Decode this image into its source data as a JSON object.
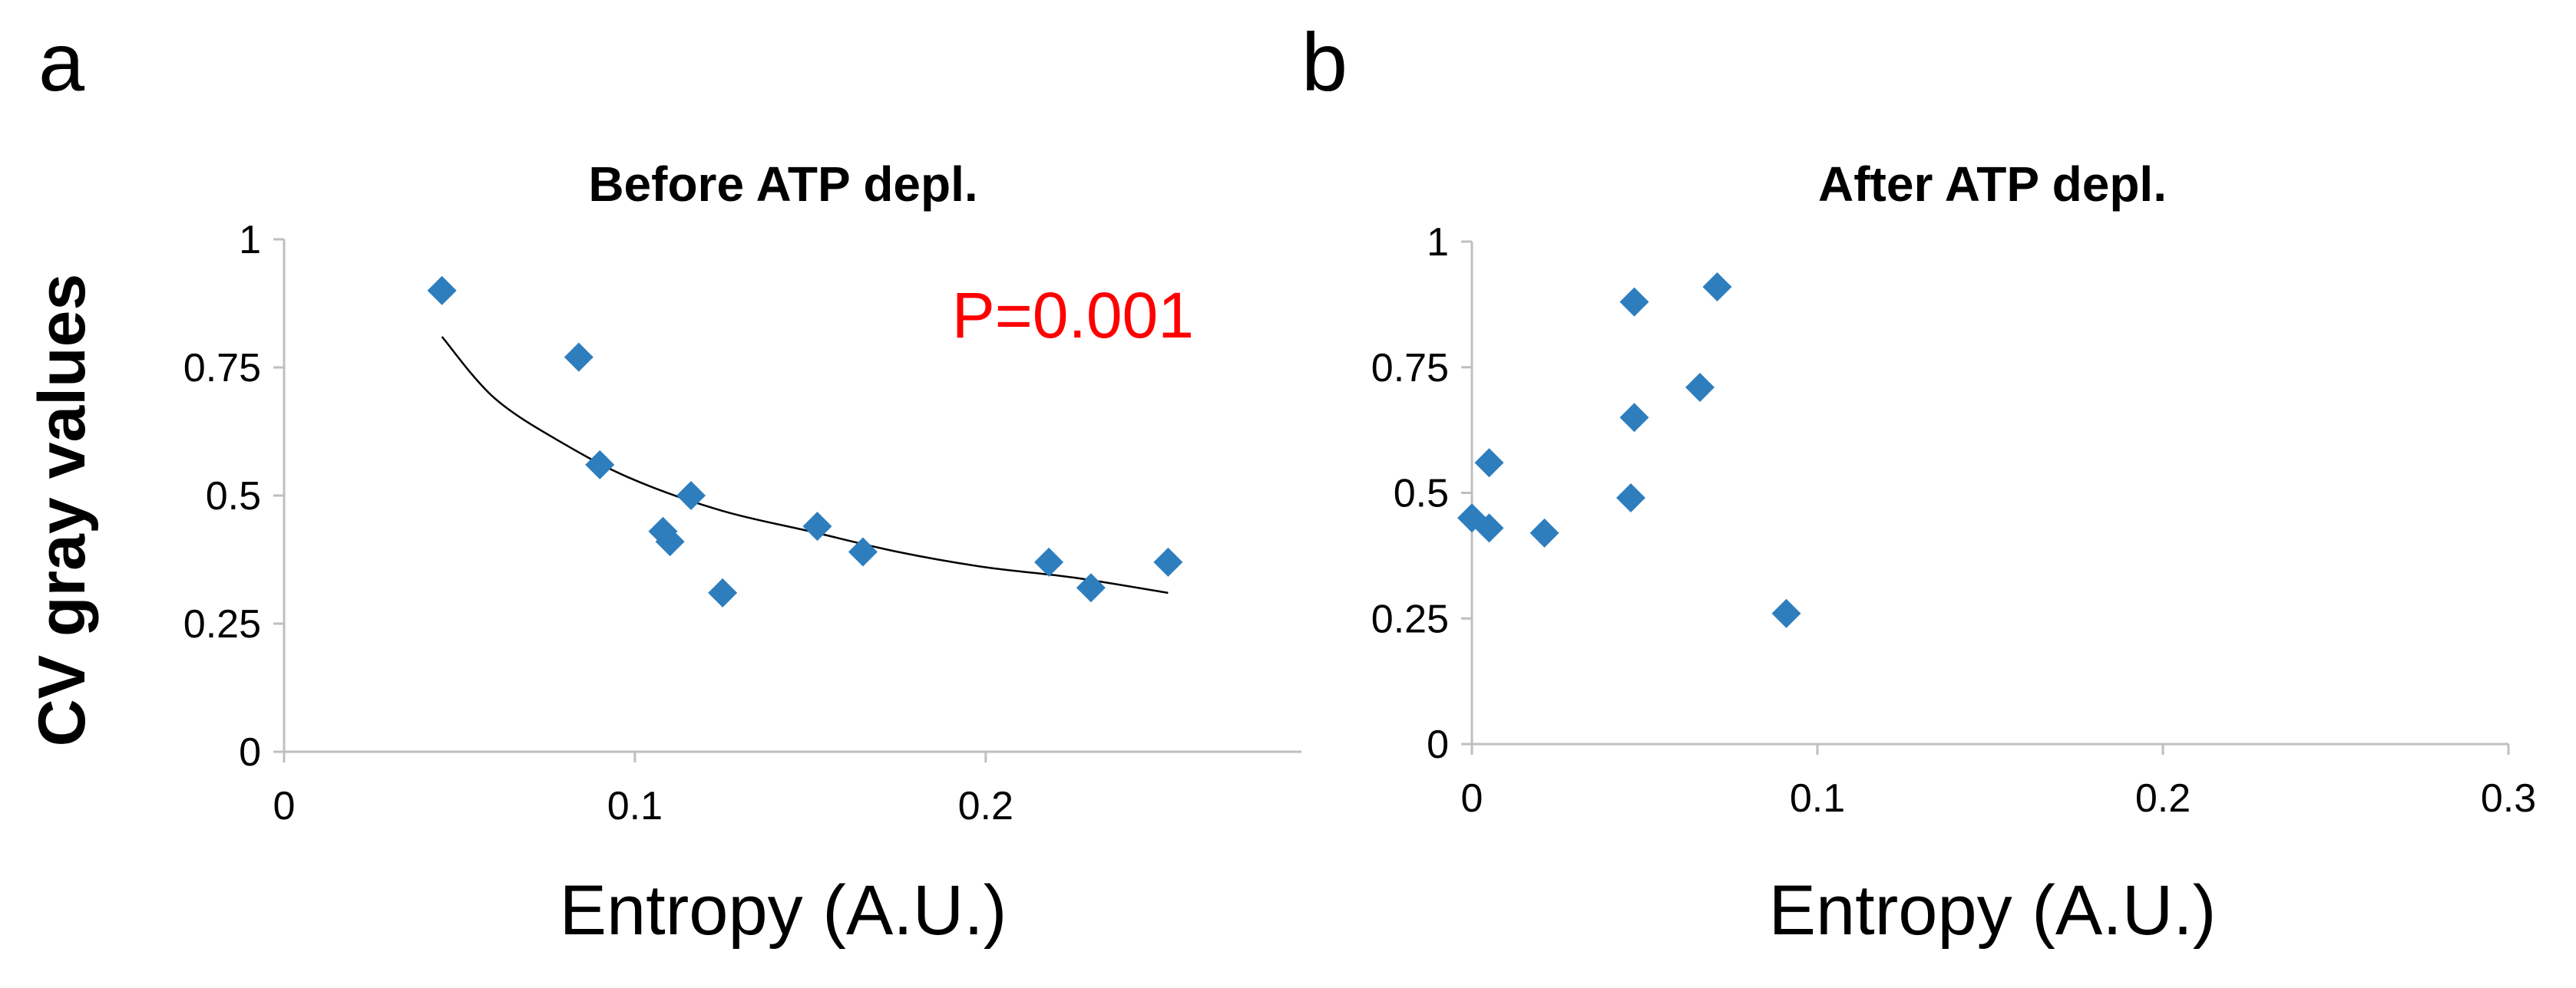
{
  "figure": {
    "y_label": "CV gray values"
  },
  "chart_data": [
    {
      "panel": "a",
      "type": "scatter",
      "title": "Before ATP depl.",
      "xlabel": "Entropy (A.U.)",
      "ylabel": "CV gray values",
      "xlim": [
        0,
        0.29
      ],
      "ylim": [
        0,
        1
      ],
      "xticks": [
        0,
        0.1,
        0.2
      ],
      "xtick_labels": [
        "0",
        "0.1",
        "0.2"
      ],
      "yticks": [
        0,
        0.25,
        0.5,
        0.75,
        1
      ],
      "ytick_labels": [
        "0",
        "0.25",
        "0.5",
        "0.75",
        "1"
      ],
      "marker": "diamond",
      "marker_color": "#2e7ebe",
      "points": [
        {
          "x": 0.045,
          "y": 0.9
        },
        {
          "x": 0.084,
          "y": 0.77
        },
        {
          "x": 0.09,
          "y": 0.56
        },
        {
          "x": 0.108,
          "y": 0.43
        },
        {
          "x": 0.11,
          "y": 0.41
        },
        {
          "x": 0.116,
          "y": 0.5
        },
        {
          "x": 0.125,
          "y": 0.31
        },
        {
          "x": 0.152,
          "y": 0.44
        },
        {
          "x": 0.165,
          "y": 0.39
        },
        {
          "x": 0.218,
          "y": 0.37
        },
        {
          "x": 0.23,
          "y": 0.32
        },
        {
          "x": 0.252,
          "y": 0.37
        }
      ],
      "trendline": {
        "type": "power",
        "x_range": [
          0.045,
          0.252
        ],
        "points": [
          {
            "x": 0.045,
            "y": 0.81
          },
          {
            "x": 0.06,
            "y": 0.69
          },
          {
            "x": 0.08,
            "y": 0.6
          },
          {
            "x": 0.1,
            "y": 0.53
          },
          {
            "x": 0.125,
            "y": 0.47
          },
          {
            "x": 0.15,
            "y": 0.43
          },
          {
            "x": 0.175,
            "y": 0.39
          },
          {
            "x": 0.2,
            "y": 0.36
          },
          {
            "x": 0.225,
            "y": 0.34
          },
          {
            "x": 0.252,
            "y": 0.31
          }
        ]
      },
      "annotation": {
        "text": "P=0.001",
        "color": "#ff0000"
      }
    },
    {
      "panel": "b",
      "type": "scatter",
      "title": "After ATP depl.",
      "xlabel": "Entropy (A.U.)",
      "ylabel": "",
      "xlim": [
        0,
        0.3
      ],
      "ylim": [
        0,
        1
      ],
      "xticks": [
        0,
        0.1,
        0.2,
        0.3
      ],
      "xtick_labels": [
        "0",
        "0.1",
        "0.2",
        "0.3"
      ],
      "yticks": [
        0,
        0.25,
        0.5,
        0.75,
        1
      ],
      "ytick_labels": [
        "0",
        "0.25",
        "0.5",
        "0.75",
        "1"
      ],
      "marker": "diamond",
      "marker_color": "#2e7ebe",
      "points": [
        {
          "x": 0.0,
          "y": 0.45
        },
        {
          "x": 0.005,
          "y": 0.43
        },
        {
          "x": 0.005,
          "y": 0.56
        },
        {
          "x": 0.021,
          "y": 0.42
        },
        {
          "x": 0.046,
          "y": 0.49
        },
        {
          "x": 0.047,
          "y": 0.65
        },
        {
          "x": 0.047,
          "y": 0.88
        },
        {
          "x": 0.066,
          "y": 0.71
        },
        {
          "x": 0.071,
          "y": 0.91
        },
        {
          "x": 0.091,
          "y": 0.26
        }
      ]
    }
  ]
}
